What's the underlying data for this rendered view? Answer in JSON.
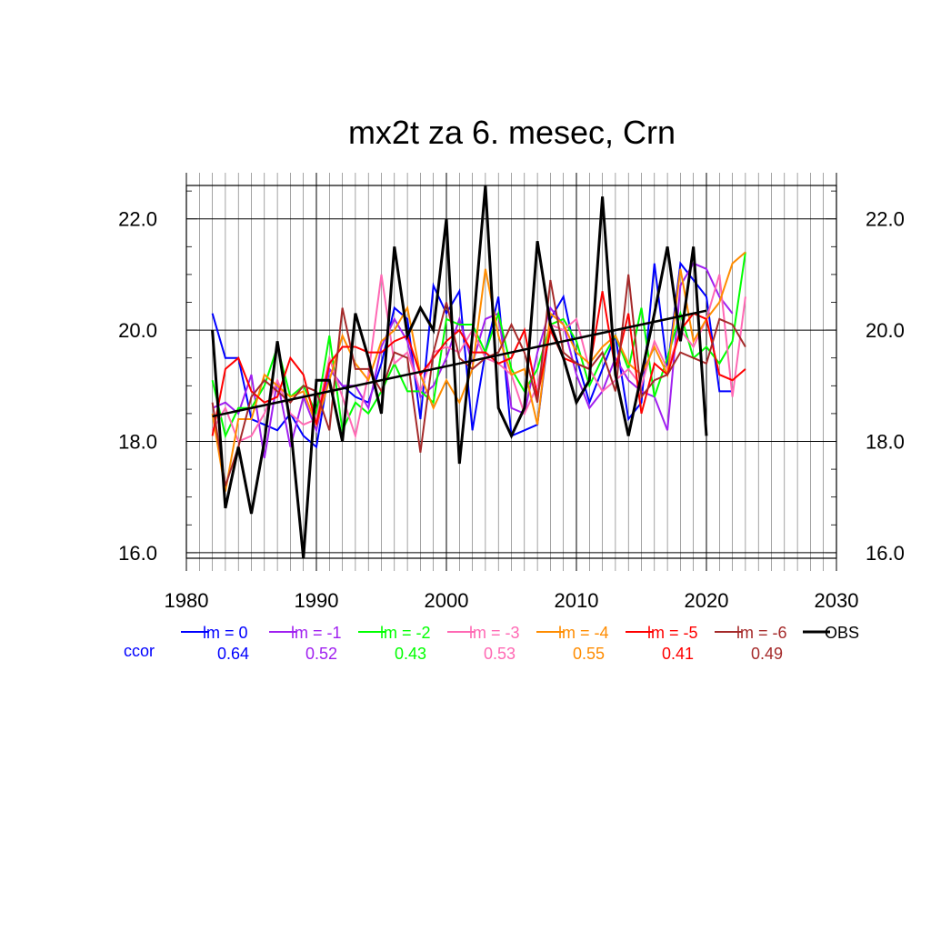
{
  "chart_data": {
    "type": "line",
    "title": "mx2t za 6. mesec, Crn",
    "xlim": [
      1980,
      2030
    ],
    "ylim": [
      15.9,
      22.6
    ],
    "x_ticks": [
      1980,
      1990,
      2000,
      2010,
      2020,
      2030
    ],
    "x_tick_labels": [
      "1980",
      "1990",
      "2000",
      "2010",
      "2020",
      "2030"
    ],
    "y_ticks": [
      16.0,
      18.0,
      20.0,
      22.0
    ],
    "y_tick_labels": [
      "16.0",
      "18.0",
      "20.0",
      "22.0"
    ],
    "grid": true,
    "legend_position": "bottom",
    "ccor_label": "ccor",
    "ccor_color": "#0000ff",
    "series": [
      {
        "name": "lm = 0",
        "color": "#0000ff",
        "ccor": "0.64",
        "x_start": 1982,
        "values": [
          20.3,
          19.5,
          19.5,
          18.4,
          18.3,
          18.2,
          18.5,
          18.1,
          17.9,
          19.3,
          19.0,
          18.8,
          18.7,
          19.4,
          20.4,
          20.2,
          18.4,
          20.8,
          20.3,
          20.7,
          18.2,
          19.6,
          20.6,
          18.1,
          18.2,
          18.3,
          20.2,
          20.6,
          19.5,
          18.7,
          19.3,
          19.9,
          18.4,
          18.7,
          21.2,
          19.3,
          21.2,
          20.9,
          20.6,
          18.9,
          18.9
        ]
      },
      {
        "name": "lm = -1",
        "color": "#a020f0",
        "ccor": "0.52",
        "x_start": 1982,
        "values": [
          18.6,
          18.7,
          18.5,
          19.2,
          17.7,
          19.1,
          17.9,
          18.8,
          18.2,
          19.3,
          19.0,
          19.0,
          18.6,
          19.7,
          20.2,
          19.8,
          18.8,
          19.0,
          19.5,
          20.2,
          19.4,
          20.2,
          20.3,
          18.6,
          18.5,
          19.6,
          20.4,
          20.1,
          19.2,
          18.6,
          18.9,
          19.5,
          19.1,
          18.9,
          18.8,
          18.2,
          20.8,
          21.2,
          21.1,
          20.6,
          20.3
        ]
      },
      {
        "name": "lm = -2",
        "color": "#00ff00",
        "ccor": "0.43",
        "x_start": 1982,
        "values": [
          19.1,
          18.1,
          18.6,
          18.6,
          19.0,
          19.7,
          18.8,
          19.0,
          18.5,
          19.9,
          18.2,
          18.7,
          18.5,
          18.9,
          19.4,
          18.9,
          18.9,
          18.7,
          20.2,
          20.1,
          20.1,
          19.6,
          20.3,
          19.3,
          18.9,
          19.3,
          20.1,
          20.2,
          19.8,
          19.0,
          19.5,
          19.9,
          19.3,
          20.4,
          18.8,
          19.5,
          20.3,
          19.5,
          19.7,
          19.4,
          19.8,
          21.4
        ]
      },
      {
        "name": "lm = -3",
        "color": "#ff69b4",
        "ccor": "0.53",
        "x_start": 1982,
        "values": [
          18.2,
          18.6,
          18.0,
          18.1,
          18.5,
          19.1,
          18.5,
          18.3,
          18.4,
          19.5,
          18.8,
          18.1,
          19.2,
          21.0,
          19.4,
          19.6,
          18.9,
          19.6,
          19.7,
          19.6,
          20.0,
          19.5,
          19.4,
          19.2,
          18.5,
          19.0,
          20.1,
          20.0,
          20.2,
          19.3,
          18.9,
          19.1,
          19.3,
          19.0,
          19.8,
          19.3,
          20.0,
          19.7,
          20.2,
          21.0,
          18.8,
          20.6
        ]
      },
      {
        "name": "lm = -4",
        "color": "#ff8c00",
        "ccor": "0.55",
        "x_start": 1982,
        "values": [
          18.5,
          17.1,
          18.4,
          18.4,
          19.2,
          19.0,
          18.8,
          18.9,
          18.3,
          19.1,
          19.9,
          19.4,
          19.1,
          19.8,
          20.0,
          20.4,
          19.2,
          18.6,
          19.1,
          18.7,
          19.3,
          21.1,
          19.9,
          19.2,
          19.3,
          18.3,
          20.3,
          20.1,
          19.6,
          19.4,
          19.7,
          19.9,
          19.4,
          19.2,
          19.7,
          19.2,
          21.1,
          19.8,
          20.2,
          20.5,
          21.2,
          21.4
        ]
      },
      {
        "name": "lm = -5",
        "color": "#ff0000",
        "ccor": "0.41",
        "x_start": 1982,
        "values": [
          18.1,
          19.3,
          19.5,
          18.9,
          18.7,
          18.8,
          19.5,
          19.2,
          18.3,
          19.4,
          19.7,
          19.7,
          19.6,
          19.6,
          19.8,
          19.9,
          19.2,
          19.5,
          19.8,
          20.0,
          19.6,
          19.6,
          19.4,
          19.5,
          20.0,
          18.8,
          20.0,
          19.5,
          19.4,
          19.3,
          20.7,
          19.3,
          20.3,
          18.5,
          19.4,
          19.2,
          20.0,
          20.3,
          20.2,
          19.2,
          19.1,
          19.3
        ]
      },
      {
        "name": "lm = -6",
        "color": "#a52a2a",
        "ccor": "0.49",
        "x_start": 1982,
        "values": [
          18.7,
          17.2,
          17.9,
          18.8,
          19.1,
          18.9,
          18.7,
          19.0,
          18.9,
          18.2,
          20.4,
          19.3,
          19.3,
          18.9,
          19.6,
          19.5,
          17.8,
          19.6,
          20.5,
          19.5,
          19.3,
          19.5,
          19.6,
          20.1,
          19.6,
          18.7,
          20.9,
          19.6,
          19.4,
          19.3,
          19.6,
          18.9,
          21.0,
          18.8,
          19.1,
          19.2,
          19.6,
          19.5,
          19.4,
          20.2,
          20.1,
          19.7
        ]
      },
      {
        "name": "OBS",
        "color": "#000000",
        "x_start": 1982,
        "values": [
          20.0,
          16.8,
          17.9,
          16.7,
          18.0,
          19.8,
          18.3,
          15.9,
          19.1,
          19.1,
          18.0,
          20.3,
          19.5,
          18.5,
          21.5,
          19.9,
          20.4,
          20.0,
          22.0,
          17.6,
          19.9,
          22.6,
          18.6,
          18.1,
          18.6,
          21.6,
          20.1,
          19.5,
          18.7,
          19.1,
          22.4,
          19.2,
          18.1,
          19.2,
          20.3,
          21.5,
          19.8,
          21.5,
          18.1
        ]
      }
    ],
    "trend": {
      "color": "#000000",
      "x": [
        1982,
        2020
      ],
      "y": [
        18.45,
        20.35
      ]
    }
  }
}
